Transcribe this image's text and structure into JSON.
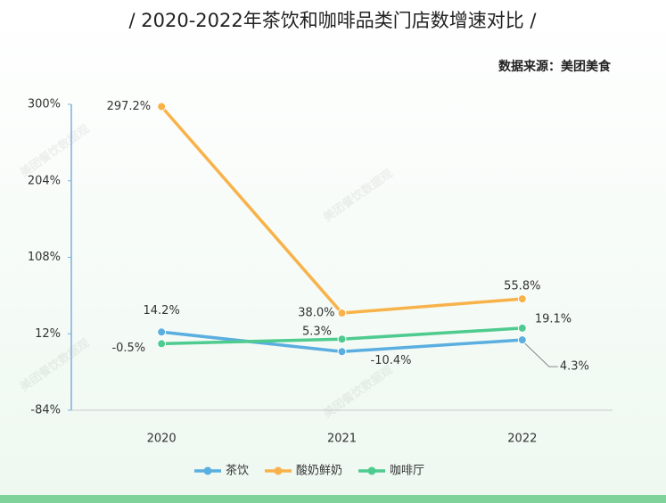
{
  "chart_data": {
    "type": "line",
    "title": "/ 2020-2022年茶饮和咖啡品类门店数增速对比 /",
    "subtitle": "数据来源：美团美食",
    "watermark": "美团餐饮数据观",
    "categories": [
      "2020",
      "2021",
      "2022"
    ],
    "series": [
      {
        "name": "茶饮",
        "color": "#5aaee0",
        "values": [
          14.2,
          -10.4,
          4.3
        ],
        "value_labels": [
          "14.2%",
          "-10.4%",
          "4.3%"
        ]
      },
      {
        "name": "酸奶鲜奶",
        "color": "#f8b24a",
        "values": [
          297.2,
          38.0,
          55.8
        ],
        "value_labels": [
          "297.2%",
          "38.0%",
          "55.8%"
        ]
      },
      {
        "name": "咖啡厅",
        "color": "#4ecb8f",
        "values": [
          -0.5,
          5.3,
          19.1
        ],
        "value_labels": [
          "-0.5%",
          "5.3%",
          "19.1%"
        ]
      }
    ],
    "ylim": [
      -84,
      300
    ],
    "yticks": [
      {
        "value": -84,
        "label": "-84%"
      },
      {
        "value": 12,
        "label": "12%"
      },
      {
        "value": 108,
        "label": "108%"
      },
      {
        "value": 204,
        "label": "204%"
      },
      {
        "value": 300,
        "label": "300%"
      }
    ],
    "legend": "bottom"
  }
}
